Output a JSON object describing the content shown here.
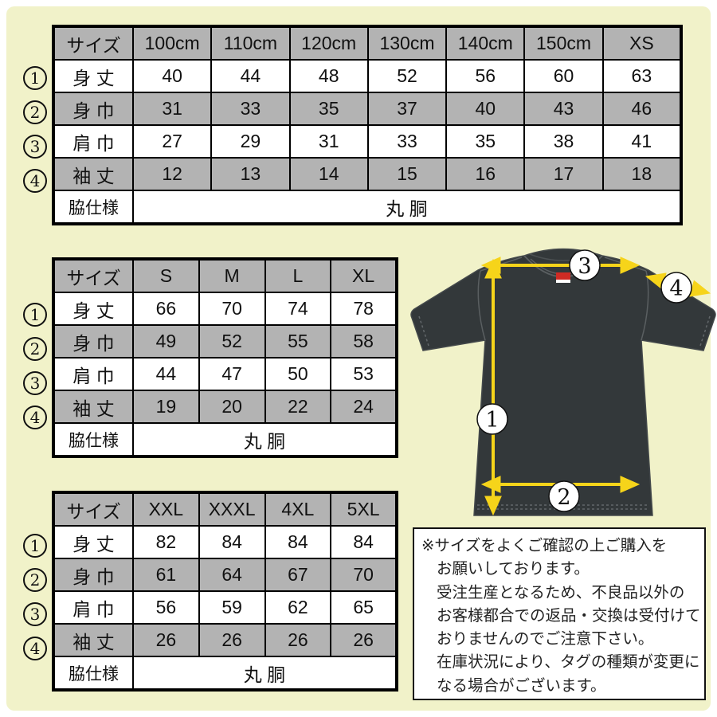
{
  "colors": {
    "background": "#f1f2c9",
    "table_gray": "#b3b3b3",
    "arrow_yellow": "#f6d41a",
    "shirt_charcoal": "#33383a",
    "tag_red": "#cf2b24"
  },
  "tables": [
    {
      "name": "kids",
      "header": [
        "サイズ",
        "100cm",
        "110cm",
        "120cm",
        "130cm",
        "140cm",
        "150cm",
        "XS"
      ],
      "rows": [
        {
          "num": "1",
          "label": "身 丈",
          "values": [
            "40",
            "44",
            "48",
            "52",
            "56",
            "60",
            "63"
          ]
        },
        {
          "num": "2",
          "label": "身 巾",
          "values": [
            "31",
            "33",
            "35",
            "37",
            "40",
            "43",
            "46"
          ]
        },
        {
          "num": "3",
          "label": "肩 巾",
          "values": [
            "27",
            "29",
            "31",
            "33",
            "35",
            "38",
            "41"
          ]
        },
        {
          "num": "4",
          "label": "袖 丈",
          "values": [
            "12",
            "13",
            "14",
            "15",
            "16",
            "17",
            "18"
          ]
        }
      ],
      "footer_label": "脇仕様",
      "footer_value": "丸 胴"
    },
    {
      "name": "adult",
      "header": [
        "サイズ",
        "S",
        "M",
        "L",
        "XL"
      ],
      "rows": [
        {
          "num": "1",
          "label": "身 丈",
          "values": [
            "66",
            "70",
            "74",
            "78"
          ]
        },
        {
          "num": "2",
          "label": "身 巾",
          "values": [
            "49",
            "52",
            "55",
            "58"
          ]
        },
        {
          "num": "3",
          "label": "肩 巾",
          "values": [
            "44",
            "47",
            "50",
            "53"
          ]
        },
        {
          "num": "4",
          "label": "袖 丈",
          "values": [
            "19",
            "20",
            "22",
            "24"
          ]
        }
      ],
      "footer_label": "脇仕様",
      "footer_value": "丸 胴"
    },
    {
      "name": "plus",
      "header": [
        "サイズ",
        "XXL",
        "XXXL",
        "4XL",
        "5XL"
      ],
      "rows": [
        {
          "num": "1",
          "label": "身 丈",
          "values": [
            "82",
            "84",
            "84",
            "84"
          ]
        },
        {
          "num": "2",
          "label": "身 巾",
          "values": [
            "61",
            "64",
            "67",
            "70"
          ]
        },
        {
          "num": "3",
          "label": "肩 巾",
          "values": [
            "56",
            "59",
            "62",
            "65"
          ]
        },
        {
          "num": "4",
          "label": "袖 丈",
          "values": [
            "26",
            "26",
            "26",
            "26"
          ]
        }
      ],
      "footer_label": "脇仕様",
      "footer_value": "丸 胴"
    }
  ],
  "diagram": {
    "markers": {
      "body_length": "1",
      "body_width": "2",
      "shoulder_width": "3",
      "sleeve_length": "4"
    }
  },
  "notice": {
    "lines": [
      "※サイズをよくご確認の上ご購入を",
      "お願いしております。",
      "受注生産となるため、不良品以外の",
      "お客様都合での返品・交換は受付けて",
      "おりませんのでご注意下さい。",
      "在庫状況により、タグの種類が変更に",
      "なる場合がございます。"
    ]
  }
}
